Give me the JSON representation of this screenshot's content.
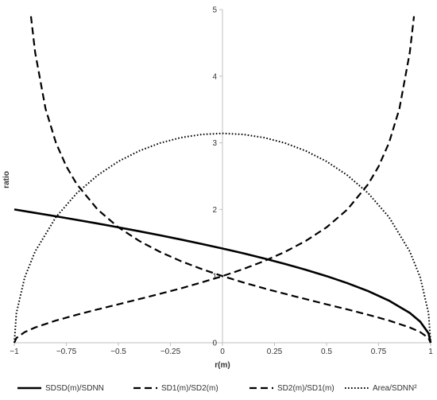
{
  "chart_data": {
    "type": "line",
    "title": "",
    "xlabel": "r(m)",
    "ylabel": "ratio",
    "xlim": [
      -1,
      1
    ],
    "ylim": [
      0,
      5
    ],
    "x_ticks": [
      "−1",
      "−0.75",
      "−0.5",
      "−0.25",
      "0",
      "0.25",
      "0.5",
      "0.75",
      "1"
    ],
    "y_ticks": [
      "0",
      "1",
      "2",
      "3",
      "4",
      "5"
    ],
    "grid": false,
    "legend_position": "bottom",
    "series": [
      {
        "name": "SDSD(m)/SDNN",
        "style": "solid",
        "color": "#000000",
        "x": [
          -1,
          -0.9,
          -0.8,
          -0.7,
          -0.6,
          -0.5,
          -0.4,
          -0.3,
          -0.2,
          -0.1,
          0,
          0.1,
          0.2,
          0.3,
          0.4,
          0.5,
          0.6,
          0.7,
          0.8,
          0.9,
          0.95,
          0.99,
          1
        ],
        "y": [
          2.0,
          1.949,
          1.897,
          1.844,
          1.789,
          1.732,
          1.673,
          1.612,
          1.549,
          1.483,
          1.414,
          1.342,
          1.265,
          1.183,
          1.095,
          1.0,
          0.894,
          0.775,
          0.632,
          0.447,
          0.316,
          0.141,
          0
        ]
      },
      {
        "name": "SD1(m)/SD2(m)",
        "style": "dashed",
        "color": "#000000",
        "x": [
          -0.92,
          -0.9,
          -0.85,
          -0.8,
          -0.75,
          -0.7,
          -0.6,
          -0.5,
          -0.4,
          -0.3,
          -0.2,
          -0.1,
          0,
          0.1,
          0.2,
          0.3,
          0.4,
          0.5,
          0.6,
          0.7,
          0.8,
          0.9,
          0.95,
          0.99,
          1
        ],
        "y": [
          4.899,
          4.359,
          3.512,
          3.0,
          2.646,
          2.38,
          2.0,
          1.732,
          1.528,
          1.363,
          1.225,
          1.106,
          1.0,
          0.905,
          0.816,
          0.734,
          0.655,
          0.577,
          0.5,
          0.42,
          0.333,
          0.229,
          0.16,
          0.071,
          0
        ]
      },
      {
        "name": "SD2(m)/SD1(m)",
        "style": "dashed",
        "color": "#000000",
        "x": [
          -1,
          -0.99,
          -0.95,
          -0.9,
          -0.8,
          -0.7,
          -0.6,
          -0.5,
          -0.4,
          -0.3,
          -0.2,
          -0.1,
          0,
          0.1,
          0.2,
          0.3,
          0.4,
          0.5,
          0.6,
          0.7,
          0.75,
          0.8,
          0.85,
          0.9,
          0.92
        ],
        "y": [
          0,
          0.071,
          0.16,
          0.229,
          0.333,
          0.42,
          0.5,
          0.577,
          0.655,
          0.734,
          0.816,
          0.905,
          1.0,
          1.106,
          1.225,
          1.363,
          1.528,
          1.732,
          2.0,
          2.38,
          2.646,
          3.0,
          3.512,
          4.359,
          4.899
        ]
      },
      {
        "name": "Area/SDNN²",
        "style": "dotted",
        "color": "#000000",
        "x": [
          -1,
          -0.99,
          -0.95,
          -0.9,
          -0.8,
          -0.7,
          -0.6,
          -0.5,
          -0.4,
          -0.3,
          -0.2,
          -0.1,
          0,
          0.1,
          0.2,
          0.3,
          0.4,
          0.5,
          0.6,
          0.7,
          0.8,
          0.9,
          0.95,
          0.99,
          1
        ],
        "y": [
          0,
          0.443,
          0.981,
          1.369,
          1.885,
          2.244,
          2.513,
          2.721,
          2.879,
          2.997,
          3.078,
          3.126,
          3.142,
          3.126,
          3.078,
          2.997,
          2.879,
          2.721,
          2.513,
          2.244,
          1.885,
          1.369,
          0.981,
          0.443,
          0
        ]
      }
    ]
  }
}
